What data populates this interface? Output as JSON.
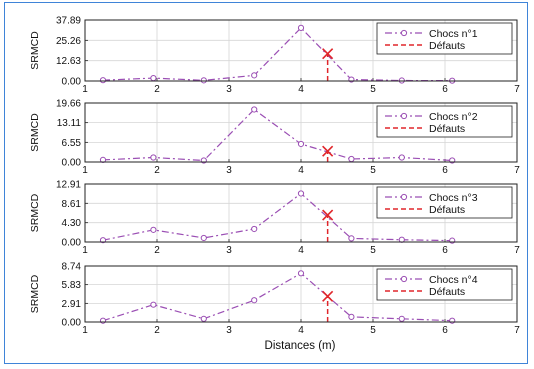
{
  "figure": {
    "frame_color": "#3f84d8",
    "xlabel": "Distances (m)"
  },
  "chart_data": [
    {
      "type": "line",
      "ylabel": "SRMCD",
      "xlim": [
        1,
        7
      ],
      "ylim": [
        0,
        37.89
      ],
      "xticks": [
        "1",
        "2",
        "3",
        "4",
        "5",
        "6",
        "7"
      ],
      "yticks": [
        "0.00",
        "12.63",
        "25.26",
        "37.89"
      ],
      "grid": true,
      "legend_position": "top-right",
      "series": [
        {
          "name": "Chocs n°1",
          "color": "#9b4fb4",
          "style": "dash-dot",
          "marker": "circle",
          "x": [
            1.25,
            1.95,
            2.65,
            3.35,
            4.0,
            4.7,
            5.4,
            6.1
          ],
          "y": [
            0.5,
            1.8,
            0.4,
            3.5,
            33.0,
            0.9,
            0.3,
            0.2
          ]
        },
        {
          "name": "Défauts",
          "color": "#e0262b",
          "style": "dashed",
          "marker": "x",
          "x": [
            4.37
          ],
          "y": [
            17.0
          ]
        }
      ]
    },
    {
      "type": "line",
      "ylabel": "SRMCD",
      "xlim": [
        1,
        7
      ],
      "ylim": [
        0,
        19.66
      ],
      "xticks": [
        "1",
        "2",
        "3",
        "4",
        "5",
        "6",
        "7"
      ],
      "yticks": [
        "0.00",
        "6.55",
        "13.11",
        "19.66"
      ],
      "grid": true,
      "legend_position": "top-right",
      "series": [
        {
          "name": "Chocs n°2",
          "color": "#9b4fb4",
          "style": "dash-dot",
          "marker": "circle",
          "x": [
            1.25,
            1.95,
            2.65,
            3.35,
            4.0,
            4.7,
            5.4,
            6.1
          ],
          "y": [
            0.7,
            1.5,
            0.5,
            17.5,
            6.0,
            1.0,
            1.5,
            0.5
          ]
        },
        {
          "name": "Défauts",
          "color": "#e0262b",
          "style": "dashed",
          "marker": "x",
          "x": [
            4.37
          ],
          "y": [
            3.6
          ]
        }
      ]
    },
    {
      "type": "line",
      "ylabel": "SRMCD",
      "xlim": [
        1,
        7
      ],
      "ylim": [
        0,
        12.91
      ],
      "xticks": [
        "1",
        "2",
        "3",
        "4",
        "5",
        "6",
        "7"
      ],
      "yticks": [
        "0.00",
        "4.30",
        "8.61",
        "12.91"
      ],
      "grid": true,
      "legend_position": "top-right",
      "series": [
        {
          "name": "Chocs n°3",
          "color": "#9b4fb4",
          "style": "dash-dot",
          "marker": "circle",
          "x": [
            1.25,
            1.95,
            2.65,
            3.35,
            4.0,
            4.7,
            5.4,
            6.1
          ],
          "y": [
            0.4,
            2.7,
            0.9,
            2.9,
            10.8,
            0.8,
            0.5,
            0.3
          ]
        },
        {
          "name": "Défauts",
          "color": "#e0262b",
          "style": "dashed",
          "marker": "x",
          "x": [
            4.37
          ],
          "y": [
            6.0
          ]
        }
      ]
    },
    {
      "type": "line",
      "ylabel": "SRMCD",
      "xlim": [
        1,
        7
      ],
      "ylim": [
        0,
        8.74
      ],
      "xticks": [
        "1",
        "2",
        "3",
        "4",
        "5",
        "6",
        "7"
      ],
      "yticks": [
        "0.00",
        "2.91",
        "5.83",
        "8.74"
      ],
      "grid": true,
      "legend_position": "top-right",
      "series": [
        {
          "name": "Chocs n°4",
          "color": "#9b4fb4",
          "style": "dash-dot",
          "marker": "circle",
          "x": [
            1.25,
            1.95,
            2.65,
            3.35,
            4.0,
            4.7,
            5.4,
            6.1
          ],
          "y": [
            0.2,
            2.7,
            0.5,
            3.4,
            7.6,
            0.8,
            0.5,
            0.2
          ]
        },
        {
          "name": "Défauts",
          "color": "#e0262b",
          "style": "dashed",
          "marker": "x",
          "x": [
            4.37
          ],
          "y": [
            4.0
          ]
        }
      ]
    }
  ]
}
